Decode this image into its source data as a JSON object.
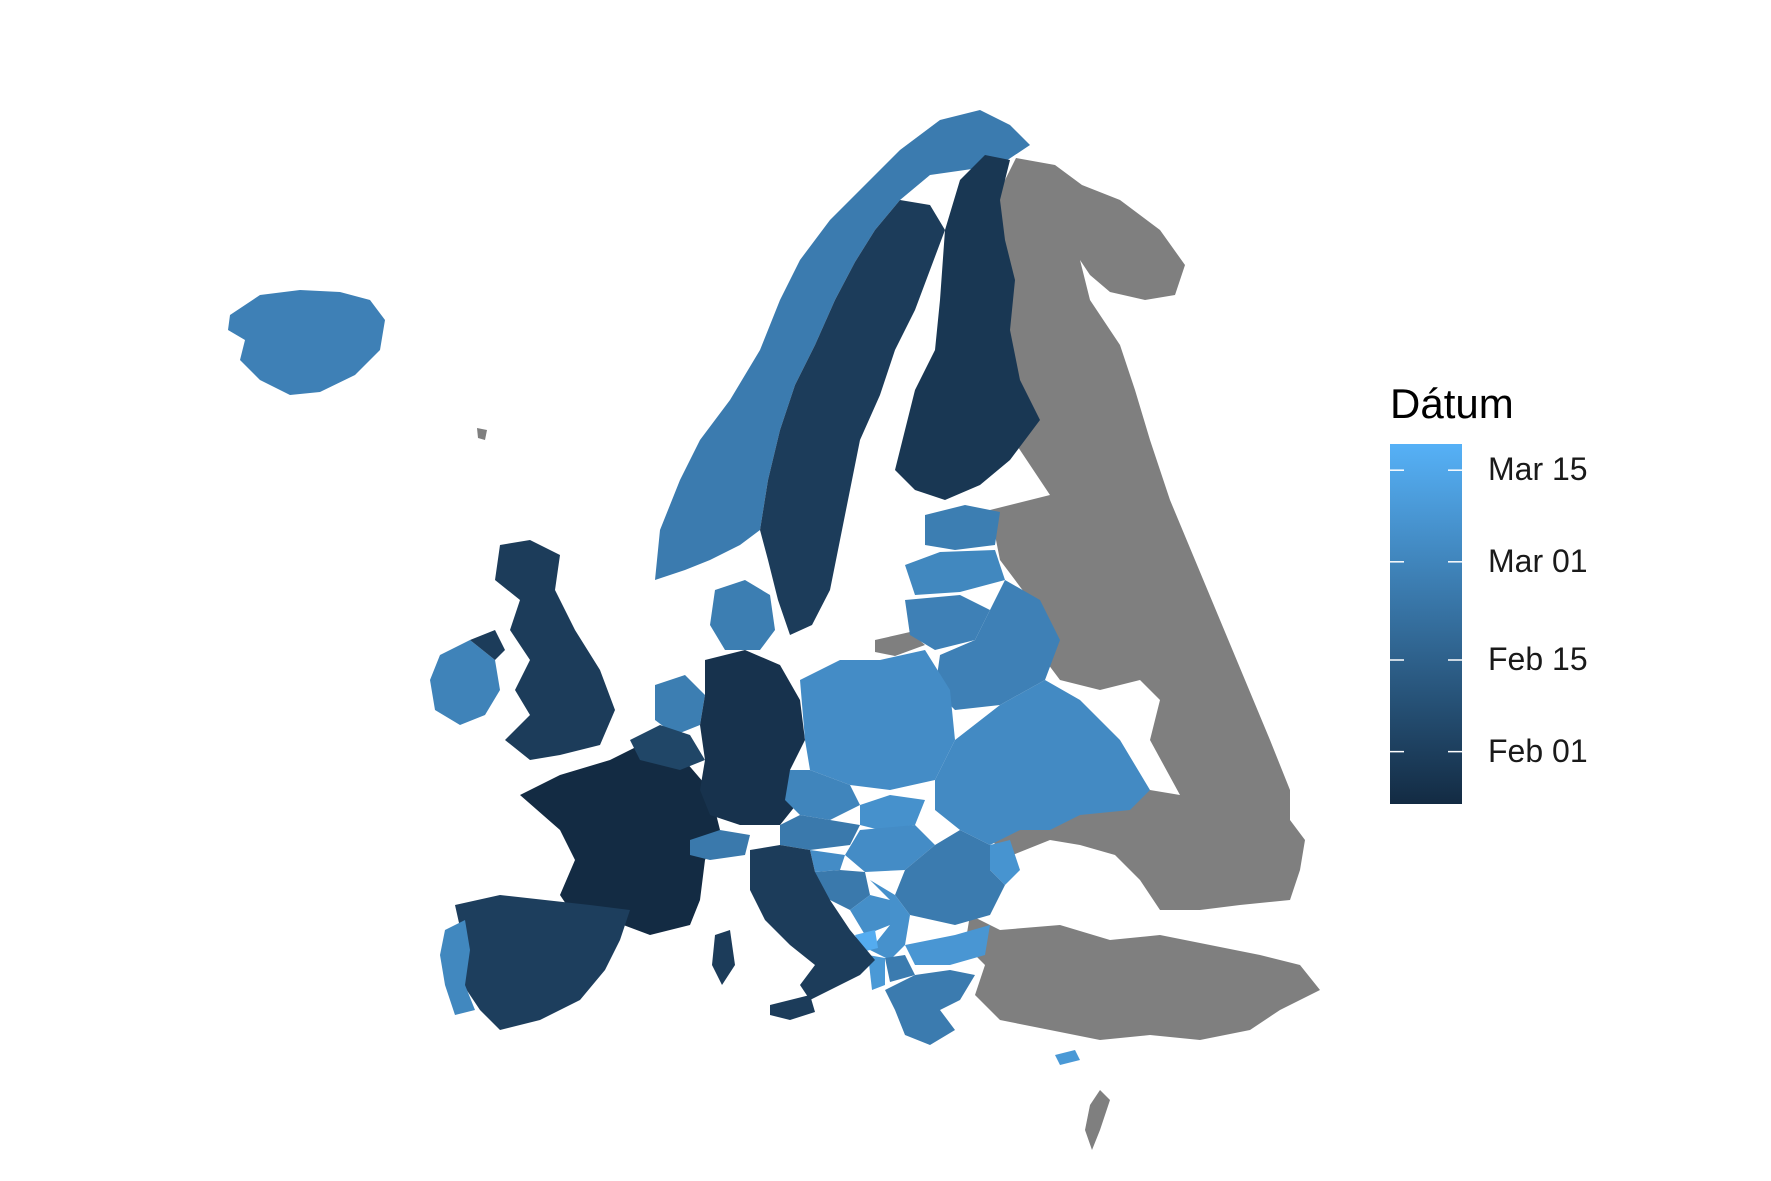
{
  "legend": {
    "title": "Dátum",
    "color_low": "#132B43",
    "color_high": "#56B1F7",
    "breaks": [
      {
        "label": "Mar 15",
        "value": "2020-03-15"
      },
      {
        "label": "Mar 01",
        "value": "2020-03-01"
      },
      {
        "label": "Feb 15",
        "value": "2020-02-15"
      },
      {
        "label": "Feb 01",
        "value": "2020-02-01"
      }
    ],
    "range": [
      "2020-01-24",
      "2020-03-19"
    ]
  },
  "no_data_color": "#7F7F7F",
  "regions": [
    {
      "name": "France",
      "date": "2020-01-24"
    },
    {
      "name": "Germany",
      "date": "2020-01-27"
    },
    {
      "name": "Finland",
      "date": "2020-01-29"
    },
    {
      "name": "United Kingdom",
      "date": "2020-01-31"
    },
    {
      "name": "Sweden",
      "date": "2020-01-31"
    },
    {
      "name": "Italy",
      "date": "2020-01-31"
    },
    {
      "name": "Spain",
      "date": "2020-02-01"
    },
    {
      "name": "Belgium",
      "date": "2020-02-04"
    },
    {
      "name": "Switzerland",
      "date": "2020-02-25"
    },
    {
      "name": "Croatia",
      "date": "2020-02-25"
    },
    {
      "name": "Austria",
      "date": "2020-02-25"
    },
    {
      "name": "Greece",
      "date": "2020-02-26"
    },
    {
      "name": "Norway",
      "date": "2020-02-26"
    },
    {
      "name": "Romania",
      "date": "2020-02-26"
    },
    {
      "name": "Denmark",
      "date": "2020-02-27"
    },
    {
      "name": "Netherlands",
      "date": "2020-02-27"
    },
    {
      "name": "Iceland",
      "date": "2020-02-28"
    },
    {
      "name": "Lithuania",
      "date": "2020-02-28"
    },
    {
      "name": "Belarus",
      "date": "2020-02-28"
    },
    {
      "name": "Ireland",
      "date": "2020-02-29"
    },
    {
      "name": "Luxembourg",
      "date": "2020-02-29"
    },
    {
      "name": "Czechia",
      "date": "2020-03-01"
    },
    {
      "name": "Portugal",
      "date": "2020-03-02"
    },
    {
      "name": "Latvia",
      "date": "2020-03-02"
    },
    {
      "name": "Estonia",
      "date": "2020-02-27"
    },
    {
      "name": "Slovenia",
      "date": "2020-03-04"
    },
    {
      "name": "Hungary",
      "date": "2020-03-04"
    },
    {
      "name": "Poland",
      "date": "2020-03-04"
    },
    {
      "name": "Ukraine",
      "date": "2020-03-03"
    },
    {
      "name": "Serbia",
      "date": "2020-03-06"
    },
    {
      "name": "Slovakia",
      "date": "2020-03-06"
    },
    {
      "name": "Bulgaria",
      "date": "2020-03-08"
    },
    {
      "name": "Moldova",
      "date": "2020-03-07"
    },
    {
      "name": "Bosnia and Herzegovina",
      "date": "2020-03-05"
    },
    {
      "name": "North Macedonia",
      "date": "2020-02-26"
    },
    {
      "name": "Albania",
      "date": "2020-03-09"
    },
    {
      "name": "Cyprus",
      "date": "2020-03-09"
    },
    {
      "name": "Montenegro",
      "date": "2020-03-17"
    },
    {
      "name": "Russia",
      "date": null
    },
    {
      "name": "Turkey",
      "date": null
    },
    {
      "name": "Kaliningrad",
      "date": null
    },
    {
      "name": "Syria region",
      "date": null
    },
    {
      "name": "Faroe Islands",
      "date": null
    }
  ]
}
